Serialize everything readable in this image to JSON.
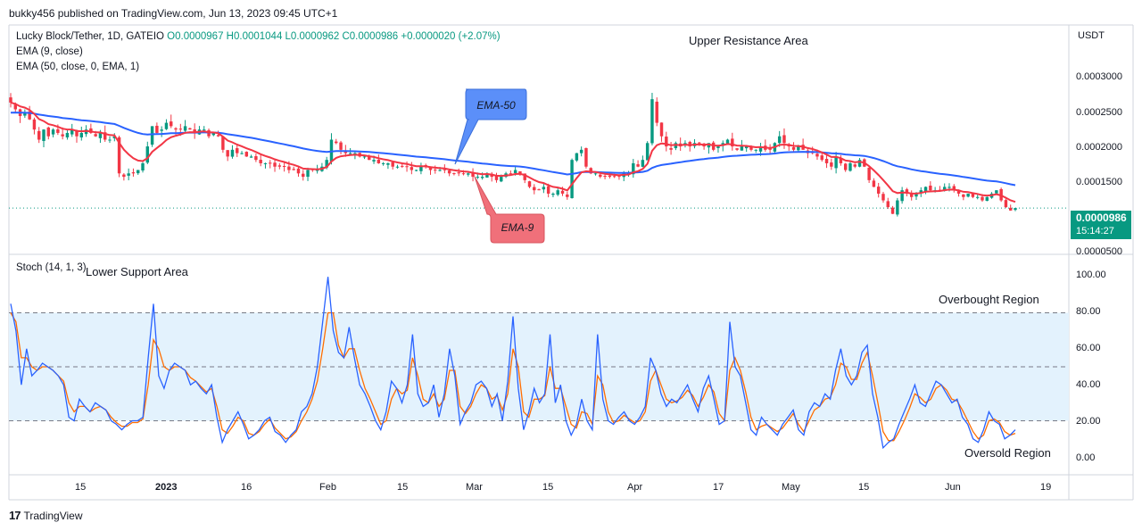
{
  "header": {
    "published": "bukky456 published on TradingView.com, Jun 13, 2023 09:45 UTC+1"
  },
  "legend": {
    "symbol": "Lucky Block/Tether, 1D, GATEIO",
    "ohlc": "O0.0000967 H0.0001044 L0.0000962 C0.0000986 +0.0000020 (+2.07%)",
    "ema9": "EMA (9, close)",
    "ema50": "EMA (50, close, 0, EMA, 1)"
  },
  "annotations": {
    "upper_resistance": "Upper Resistance Area",
    "lower_support": "Lower Support Area",
    "overbought": "Overbought Region",
    "oversold": "Oversold Region",
    "ema50_callout": "EMA-50",
    "ema9_callout": "EMA-9"
  },
  "currency": "USDT",
  "price_axis_labels": [
    "0.0003000",
    "0.0002500",
    "0.0002000",
    "0.0001500",
    "0.0000500"
  ],
  "price_tag": {
    "value": "0.0000986",
    "countdown": "15:14:27"
  },
  "stoch_label": "Stoch (14, 1, 3)",
  "stoch_axis_labels": [
    "100.00",
    "80.00",
    "60.00",
    "40.00",
    "20.00",
    "0.00"
  ],
  "time_axis_labels": [
    "15",
    "2023",
    "16",
    "Feb",
    "15",
    "Mar",
    "15",
    "Apr",
    "17",
    "May",
    "15",
    "Jun",
    "19"
  ],
  "footer": {
    "brand": "TradingView",
    "logo": "tradingview-logo-icon"
  },
  "colors": {
    "up": "#089981",
    "down": "#f23645",
    "ema9": "#f23645",
    "ema50": "#2962ff",
    "stoch_k": "#2962ff",
    "stoch_d": "#ff6d00",
    "band": "#e3f2fd",
    "ema50_callout_bg": "#5b8ff9",
    "ema9_callout_bg": "#f0707a"
  },
  "chart_data": [
    {
      "type": "candlestick",
      "title": "Lucky Block/Tether, 1D, GATEIO",
      "ylabel": "USDT",
      "ylim": [
        3e-05,
        0.00037
      ],
      "ohlc_last": {
        "open": 9.67e-05,
        "high": 0.0001044,
        "low": 9.62e-05,
        "close": 9.86e-05
      },
      "closes": [
        0.000255,
        0.000245,
        0.000235,
        0.00024,
        0.00023,
        0.000215,
        0.0002,
        0.000215,
        0.000205,
        0.000215,
        0.00021,
        0.000205,
        0.00021,
        0.000215,
        0.000205,
        0.00021,
        0.000215,
        0.00021,
        0.000205,
        0.00021,
        0.0002,
        0.0002,
        0.000205,
        0.00015,
        0.000145,
        0.00015,
        0.00015,
        0.000155,
        0.000165,
        0.00019,
        0.00022,
        0.00021,
        0.000215,
        0.000225,
        0.00022,
        0.000215,
        0.000215,
        0.00022,
        0.000215,
        0.00021,
        0.000215,
        0.000215,
        0.000205,
        0.00021,
        0.000205,
        0.000185,
        0.000175,
        0.000185,
        0.00018,
        0.00018,
        0.000175,
        0.000175,
        0.00017,
        0.000165,
        0.000165,
        0.000165,
        0.00016,
        0.00016,
        0.00016,
        0.000155,
        0.000155,
        0.00015,
        0.000145,
        0.000155,
        0.000155,
        0.000155,
        0.00016,
        0.00017,
        0.0002,
        0.000195,
        0.000185,
        0.00018,
        0.00018,
        0.00018,
        0.000175,
        0.000175,
        0.00017,
        0.00017,
        0.000165,
        0.000165,
        0.000165,
        0.00016,
        0.00016,
        0.00016,
        0.00016,
        0.000155,
        0.000155,
        0.00016,
        0.00016,
        0.000155,
        0.000155,
        0.000155,
        0.000155,
        0.00015,
        0.00015,
        0.00015,
        0.00015,
        0.00015,
        0.000145,
        0.000145,
        0.000145,
        0.00015,
        0.000145,
        0.00014,
        0.000145,
        0.00015,
        0.00015,
        0.000155,
        0.00015,
        0.00014,
        0.00013,
        0.000125,
        0.000125,
        0.00013,
        0.00012,
        0.00012,
        0.000125,
        0.00012,
        0.000115,
        0.00017,
        0.00018,
        0.000185,
        0.00016,
        0.00015,
        0.00015,
        0.000145,
        0.000145,
        0.000145,
        0.000145,
        0.000145,
        0.00015,
        0.00015,
        0.000165,
        0.00016,
        0.00017,
        0.000195,
        0.00026,
        0.000225,
        0.000205,
        0.00019,
        0.000185,
        0.000195,
        0.00019,
        0.000195,
        0.00019,
        0.000195,
        0.000195,
        0.00019,
        0.000195,
        0.000185,
        0.00019,
        0.000195,
        0.0002,
        0.00019,
        0.000185,
        0.00019,
        0.00019,
        0.000185,
        0.000185,
        0.00019,
        0.000185,
        0.000185,
        0.000195,
        0.000205,
        0.000195,
        0.00019,
        0.000185,
        0.00019,
        0.000185,
        0.00018,
        0.00018,
        0.000175,
        0.00017,
        0.000165,
        0.00016,
        0.000175,
        0.000165,
        0.000155,
        0.000165,
        0.00016,
        0.00017,
        0.00016,
        0.00014,
        0.00013,
        0.00012,
        0.00011,
        0.0001,
        9e-05,
        0.00011,
        0.000125,
        0.00012,
        0.000115,
        0.00012,
        0.000125,
        0.00013,
        0.000125,
        0.000125,
        0.000125,
        0.00013,
        0.00013,
        0.000125,
        0.00012,
        0.000115,
        0.00012,
        0.000115,
        0.000115,
        0.00011,
        0.000115,
        0.00012,
        0.000125,
        0.00011,
        0.0001,
        9.5e-05,
        9.86e-05
      ],
      "series": [
        {
          "name": "EMA (9, close)",
          "color": "#f23645"
        },
        {
          "name": "EMA (50, close, 0, EMA, 1)",
          "color": "#2962ff"
        }
      ]
    },
    {
      "type": "line",
      "title": "Stoch (14, 1, 3)",
      "ylim": [
        -10,
        110
      ],
      "reference_lines": [
        80,
        50,
        20
      ],
      "k": [
        85,
        70,
        40,
        60,
        45,
        48,
        52,
        50,
        48,
        45,
        40,
        22,
        20,
        32,
        28,
        25,
        30,
        28,
        26,
        20,
        18,
        15,
        18,
        20,
        20,
        22,
        55,
        85,
        45,
        38,
        48,
        52,
        50,
        48,
        40,
        42,
        38,
        35,
        40,
        22,
        8,
        15,
        20,
        25,
        18,
        10,
        12,
        15,
        20,
        22,
        14,
        12,
        8,
        12,
        15,
        25,
        28,
        35,
        50,
        75,
        100,
        70,
        58,
        55,
        72,
        55,
        40,
        35,
        28,
        20,
        15,
        25,
        42,
        38,
        30,
        40,
        68,
        35,
        28,
        30,
        40,
        22,
        35,
        60,
        45,
        18,
        25,
        30,
        40,
        42,
        38,
        28,
        35,
        20,
        42,
        78,
        38,
        15,
        25,
        38,
        30,
        35,
        68,
        30,
        40,
        20,
        12,
        18,
        32,
        20,
        15,
        68,
        32,
        20,
        18,
        22,
        25,
        20,
        18,
        22,
        28,
        55,
        48,
        35,
        28,
        32,
        30,
        35,
        40,
        32,
        25,
        38,
        45,
        32,
        18,
        20,
        75,
        50,
        45,
        30,
        15,
        12,
        22,
        18,
        15,
        12,
        18,
        22,
        26,
        15,
        12,
        25,
        30,
        28,
        35,
        32,
        48,
        60,
        45,
        40,
        45,
        58,
        62,
        35,
        22,
        5,
        8,
        10,
        18,
        25,
        32,
        40,
        30,
        28,
        35,
        42,
        40,
        35,
        30,
        32,
        22,
        18,
        10,
        8,
        15,
        25,
        20,
        18,
        10,
        12,
        15
      ],
      "d": [
        80,
        75,
        55,
        55,
        50,
        48,
        50,
        50,
        48,
        45,
        42,
        30,
        25,
        28,
        28,
        25,
        27,
        28,
        26,
        22,
        19,
        17,
        17,
        19,
        19,
        21,
        40,
        65,
        60,
        50,
        48,
        50,
        50,
        48,
        44,
        42,
        39,
        36,
        38,
        28,
        15,
        13,
        17,
        22,
        20,
        13,
        12,
        14,
        18,
        21,
        16,
        13,
        10,
        11,
        14,
        20,
        25,
        32,
        42,
        60,
        80,
        80,
        62,
        55,
        60,
        60,
        48,
        38,
        32,
        25,
        18,
        20,
        32,
        38,
        35,
        37,
        55,
        45,
        32,
        30,
        35,
        28,
        32,
        48,
        48,
        28,
        24,
        28,
        35,
        40,
        38,
        32,
        34,
        26,
        35,
        60,
        50,
        25,
        22,
        32,
        32,
        34,
        50,
        38,
        38,
        28,
        18,
        16,
        25,
        24,
        18,
        45,
        40,
        25,
        19,
        20,
        23,
        21,
        19,
        20,
        25,
        42,
        48,
        40,
        32,
        30,
        31,
        33,
        37,
        34,
        28,
        33,
        40,
        36,
        24,
        20,
        48,
        55,
        48,
        36,
        22,
        15,
        17,
        18,
        16,
        14,
        16,
        20,
        24,
        18,
        14,
        20,
        26,
        28,
        32,
        33,
        40,
        52,
        50,
        43,
        43,
        52,
        58,
        45,
        30,
        14,
        9,
        9,
        14,
        20,
        27,
        35,
        33,
        30,
        32,
        38,
        40,
        37,
        32,
        31,
        26,
        20,
        14,
        10,
        12,
        20,
        21,
        19,
        14,
        12,
        13
      ]
    }
  ]
}
